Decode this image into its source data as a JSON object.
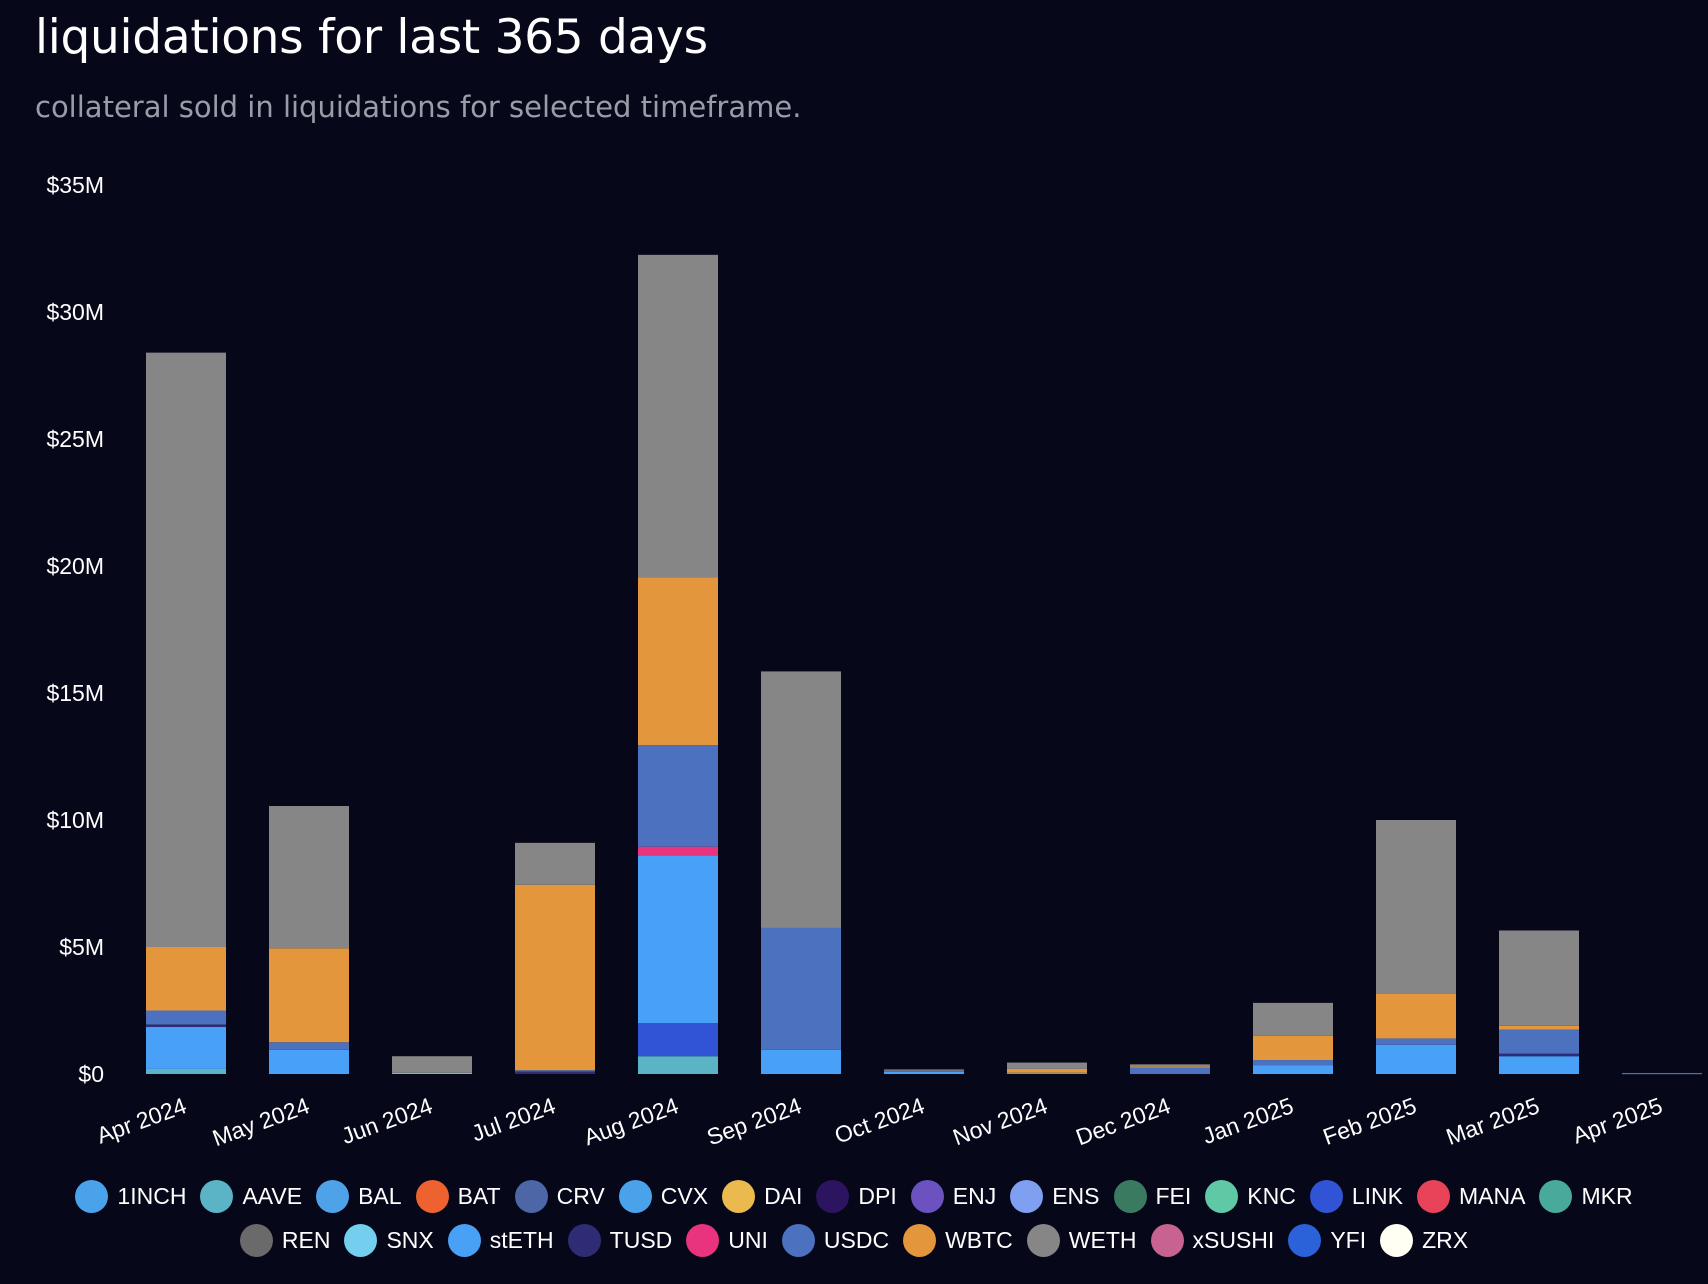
{
  "header": {
    "title": "liquidations for last 365 days",
    "subtitle": "collateral sold in liquidations for selected timeframe."
  },
  "chart_data": {
    "type": "bar",
    "stacked": true,
    "title": "liquidations for last 365 days",
    "subtitle": "collateral sold in liquidations for selected timeframe.",
    "xlabel": "",
    "ylabel": "",
    "ylim": [
      0,
      35000000
    ],
    "y_ticks": [
      0,
      5000000,
      10000000,
      15000000,
      20000000,
      25000000,
      30000000,
      35000000
    ],
    "y_tick_labels": [
      "$0",
      "$5M",
      "$10M",
      "$15M",
      "$20M",
      "$25M",
      "$30M",
      "$35M"
    ],
    "grid": false,
    "legend_position": "bottom",
    "categories": [
      "Apr 2024",
      "May 2024",
      "Jun 2024",
      "Jul 2024",
      "Aug 2024",
      "Sep 2024",
      "Oct 2024",
      "Nov 2024",
      "Dec 2024",
      "Jan 2025",
      "Feb 2025",
      "Mar 2025",
      "Apr 2025"
    ],
    "series": [
      {
        "name": "1INCH",
        "color": "#4aa3ea",
        "values": [
          0,
          0,
          0,
          0,
          0,
          0,
          0,
          0,
          0,
          0,
          0,
          0,
          0
        ]
      },
      {
        "name": "AAVE",
        "color": "#5ab4c5",
        "values": [
          200000,
          0,
          0,
          0,
          700000,
          0,
          0,
          0,
          0,
          0,
          0,
          0,
          0
        ]
      },
      {
        "name": "BAL",
        "color": "#4da2e8",
        "values": [
          0,
          0,
          0,
          0,
          0,
          0,
          0,
          0,
          0,
          0,
          0,
          0,
          0
        ]
      },
      {
        "name": "BAT",
        "color": "#ee6230",
        "values": [
          0,
          0,
          0,
          0,
          0,
          0,
          0,
          0,
          0,
          0,
          0,
          0,
          0
        ]
      },
      {
        "name": "CRV",
        "color": "#4d66a6",
        "values": [
          0,
          0,
          0,
          0,
          0,
          0,
          0,
          0,
          0,
          0,
          0,
          0,
          0
        ]
      },
      {
        "name": "CVX",
        "color": "#4aa3ea",
        "values": [
          0,
          0,
          0,
          0,
          0,
          0,
          0,
          0,
          0,
          0,
          0,
          0,
          0
        ]
      },
      {
        "name": "DAI",
        "color": "#ebba4e",
        "values": [
          0,
          0,
          0,
          0,
          0,
          0,
          0,
          0,
          0,
          0,
          0,
          0,
          0
        ]
      },
      {
        "name": "DPI",
        "color": "#2d1460",
        "values": [
          0,
          0,
          0,
          0,
          0,
          0,
          0,
          0,
          0,
          0,
          0,
          0,
          0
        ]
      },
      {
        "name": "ENJ",
        "color": "#6b52c0",
        "values": [
          0,
          0,
          0,
          0,
          0,
          0,
          0,
          0,
          0,
          0,
          0,
          0,
          0
        ]
      },
      {
        "name": "ENS",
        "color": "#7fa0f0",
        "values": [
          0,
          0,
          0,
          0,
          0,
          0,
          0,
          0,
          0,
          0,
          0,
          0,
          0
        ]
      },
      {
        "name": "FEI",
        "color": "#3a7a60",
        "values": [
          0,
          0,
          0,
          0,
          0,
          0,
          0,
          0,
          0,
          0,
          0,
          0,
          0
        ]
      },
      {
        "name": "KNC",
        "color": "#5ec9a4",
        "values": [
          0,
          0,
          50000,
          0,
          0,
          0,
          0,
          0,
          0,
          0,
          0,
          0,
          0
        ]
      },
      {
        "name": "LINK",
        "color": "#3054d5",
        "values": [
          0,
          0,
          0,
          0,
          1300000,
          0,
          0,
          0,
          0,
          0,
          0,
          0,
          0
        ]
      },
      {
        "name": "MANA",
        "color": "#e84359",
        "values": [
          0,
          0,
          0,
          0,
          0,
          0,
          0,
          0,
          0,
          0,
          0,
          0,
          0
        ]
      },
      {
        "name": "MKR",
        "color": "#49a99a",
        "values": [
          0,
          0,
          0,
          0,
          0,
          0,
          0,
          0,
          0,
          0,
          0,
          0,
          0
        ]
      },
      {
        "name": "REN",
        "color": "#6a6a6a",
        "values": [
          0,
          0,
          0,
          0,
          0,
          0,
          0,
          0,
          0,
          0,
          0,
          0,
          0
        ]
      },
      {
        "name": "SNX",
        "color": "#74cfef",
        "values": [
          0,
          0,
          0,
          0,
          0,
          0,
          0,
          0,
          0,
          0,
          0,
          0,
          0
        ]
      },
      {
        "name": "stETH",
        "color": "#48a0f7",
        "values": [
          1650000,
          950000,
          0,
          0,
          6600000,
          950000,
          80000,
          50000,
          0,
          350000,
          1150000,
          700000,
          0
        ]
      },
      {
        "name": "TUSD",
        "color": "#2f2c75",
        "values": [
          100000,
          0,
          0,
          100000,
          0,
          0,
          0,
          0,
          0,
          0,
          0,
          100000,
          0
        ]
      },
      {
        "name": "UNI",
        "color": "#e9337f",
        "values": [
          0,
          0,
          0,
          0,
          350000,
          0,
          0,
          0,
          0,
          0,
          0,
          0,
          0
        ]
      },
      {
        "name": "USDC",
        "color": "#4b71bf",
        "values": [
          550000,
          300000,
          0,
          50000,
          4000000,
          4800000,
          50000,
          0,
          250000,
          200000,
          250000,
          950000,
          40000
        ]
      },
      {
        "name": "WBTC",
        "color": "#e3963c",
        "values": [
          2500000,
          3700000,
          0,
          7300000,
          6600000,
          0,
          0,
          150000,
          50000,
          950000,
          1750000,
          150000,
          0
        ]
      },
      {
        "name": "WETH",
        "color": "#868686",
        "values": [
          23400000,
          5600000,
          650000,
          1650000,
          12700000,
          10100000,
          50000,
          250000,
          80000,
          1300000,
          6850000,
          3750000,
          0
        ]
      },
      {
        "name": "xSUSHI",
        "color": "#c8628f",
        "values": [
          0,
          0,
          0,
          0,
          0,
          0,
          0,
          0,
          0,
          0,
          0,
          0,
          0
        ]
      },
      {
        "name": "YFI",
        "color": "#2b61d9",
        "values": [
          0,
          0,
          0,
          0,
          0,
          0,
          0,
          0,
          0,
          0,
          0,
          0,
          0
        ]
      },
      {
        "name": "ZRX",
        "color": "#fffff4",
        "values": [
          0,
          0,
          0,
          0,
          0,
          0,
          0,
          0,
          0,
          0,
          0,
          0,
          0
        ]
      }
    ]
  }
}
